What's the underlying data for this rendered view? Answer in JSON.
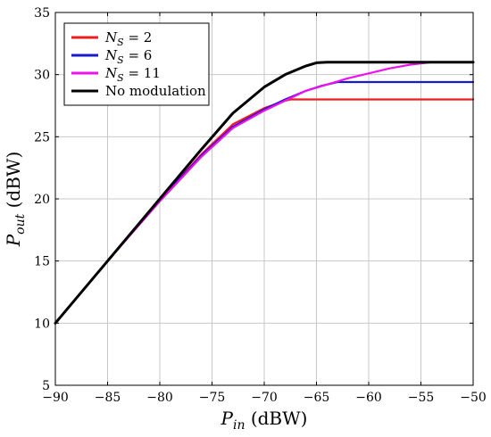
{
  "chart_data": {
    "type": "line",
    "xlabel": {
      "main": "P",
      "sub": "in",
      "unit": " (dBW)"
    },
    "ylabel": {
      "main": "P",
      "sub": "out",
      "unit": " (dBW)"
    },
    "xlim": [
      -90,
      -50
    ],
    "ylim": [
      5,
      35
    ],
    "xticks": [
      -90,
      -85,
      -80,
      -75,
      -70,
      -65,
      -60,
      -55,
      -50
    ],
    "yticks": [
      5,
      10,
      15,
      20,
      25,
      30,
      35
    ],
    "xtick_labels": [
      "−90",
      "−85",
      "−80",
      "−75",
      "−70",
      "−65",
      "−60",
      "−55",
      "−50"
    ],
    "ytick_labels": [
      "5",
      "10",
      "15",
      "20",
      "25",
      "30",
      "35"
    ],
    "grid": true,
    "legend_position": "top-left",
    "series": [
      {
        "name": "N_S = 2",
        "legend": {
          "main": "N",
          "sub": "S",
          "rest": " = 2"
        },
        "color": "#ee1c1c",
        "x": [
          -90,
          -85,
          -80,
          -76,
          -73,
          -70,
          -68,
          -67.5,
          -66,
          -64,
          -60,
          -55,
          -50
        ],
        "y": [
          10,
          15,
          19.9,
          23.6,
          26.0,
          27.3,
          27.9,
          28.0,
          28.0,
          28.0,
          28.0,
          28.0,
          28.0
        ]
      },
      {
        "name": "N_S = 6",
        "legend": {
          "main": "N",
          "sub": "S",
          "rest": " = 6"
        },
        "color": "#1a1acc",
        "x": [
          -90,
          -85,
          -80,
          -76,
          -73,
          -70,
          -68,
          -66,
          -64.5,
          -63,
          -60,
          -55,
          -50
        ],
        "y": [
          10,
          15,
          19.9,
          23.5,
          25.8,
          27.2,
          28.0,
          28.7,
          29.1,
          29.4,
          29.4,
          29.4,
          29.4
        ]
      },
      {
        "name": "N_S = 11",
        "legend": {
          "main": "N",
          "sub": "S",
          "rest": " = 11"
        },
        "color": "#ee11ee",
        "x": [
          -90,
          -85,
          -80,
          -76,
          -73,
          -70,
          -68,
          -66,
          -64,
          -62,
          -60,
          -58,
          -56,
          -54,
          -53,
          -50
        ],
        "y": [
          10,
          15,
          19.8,
          23.4,
          25.7,
          27.1,
          27.9,
          28.7,
          29.2,
          29.7,
          30.1,
          30.5,
          30.8,
          31.0,
          31.0,
          31.0
        ]
      },
      {
        "name": "No modulation",
        "legend": {
          "main": "No modulation",
          "sub": "",
          "rest": ""
        },
        "color": "#000000",
        "x": [
          -90,
          -85,
          -80,
          -76,
          -73,
          -70,
          -68,
          -66,
          -65,
          -64,
          -60,
          -55,
          -50
        ],
        "y": [
          10,
          15,
          20,
          24,
          26.9,
          29.0,
          30.0,
          30.7,
          30.95,
          31.0,
          31.0,
          31.0,
          31.0
        ]
      }
    ]
  }
}
